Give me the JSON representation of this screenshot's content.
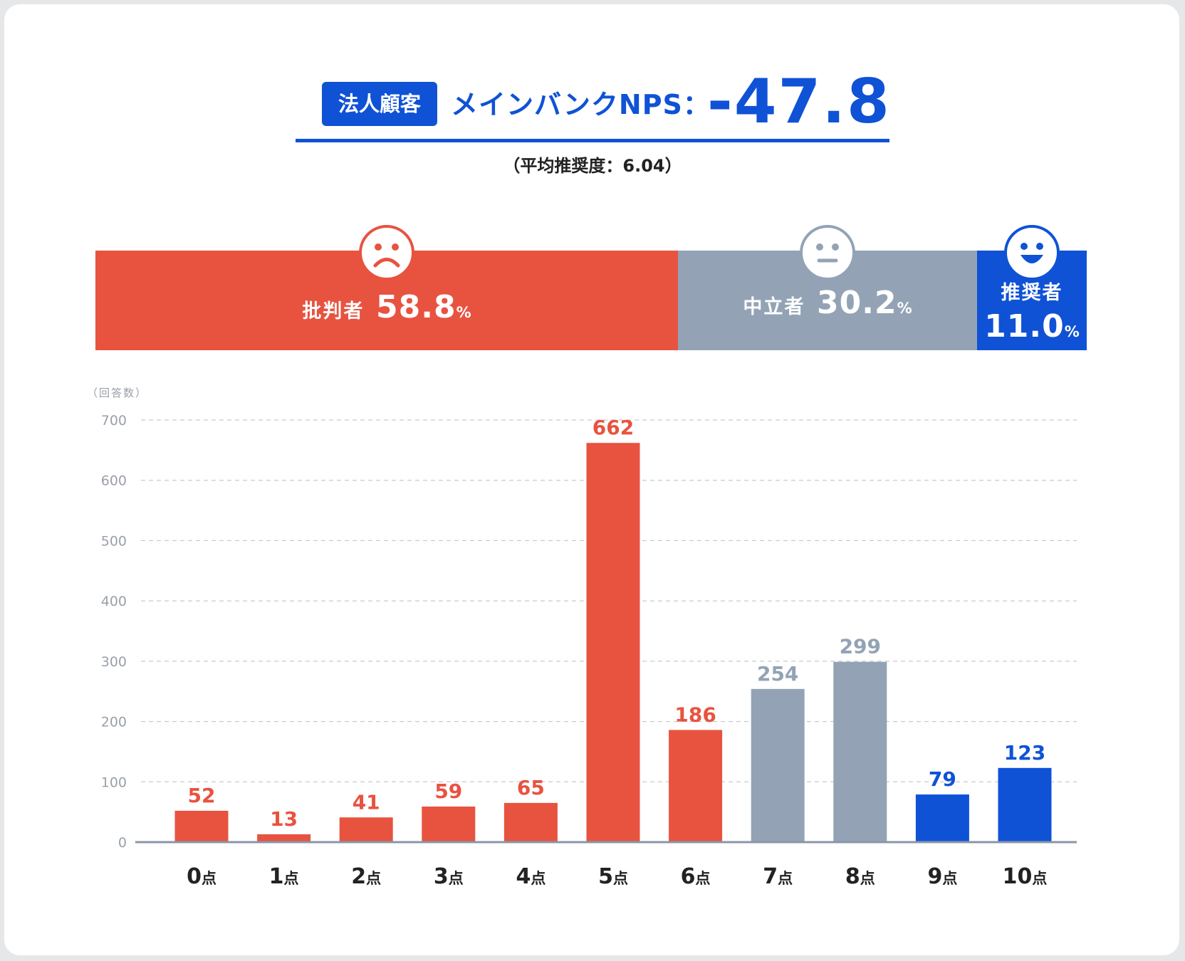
{
  "header": {
    "badge": "法人顧客",
    "title": "メインバンクNPS：",
    "value": "-47.8",
    "subtitle": "（平均推奨度：6.04）"
  },
  "segments": [
    {
      "label": "批判者",
      "value": "58.8",
      "unit": "%",
      "share": 58.8,
      "color": "#e85340",
      "face": "sad-face-icon"
    },
    {
      "label": "中立者",
      "value": "30.2",
      "unit": "%",
      "share": 30.2,
      "color": "#93a3b5",
      "face": "neutral-face-icon"
    },
    {
      "label": "推奨者",
      "value": "11.0",
      "unit": "%",
      "share": 11.0,
      "color": "#0f52d6",
      "face": "happy-face-icon"
    }
  ],
  "chart_data": {
    "type": "bar",
    "ylabel": "（回答数）",
    "ylim": [
      0,
      700
    ],
    "yticks": [
      0,
      100,
      200,
      300,
      400,
      500,
      600,
      700
    ],
    "grid": true,
    "categories": [
      "0点",
      "1点",
      "2点",
      "3点",
      "4点",
      "5点",
      "6点",
      "7点",
      "8点",
      "9点",
      "10点"
    ],
    "category_numbers": [
      "0",
      "1",
      "2",
      "3",
      "4",
      "5",
      "6",
      "7",
      "8",
      "9",
      "10"
    ],
    "category_unit": "点",
    "values": [
      52,
      13,
      41,
      59,
      65,
      662,
      186,
      254,
      299,
      79,
      123
    ],
    "colors": [
      "#e85340",
      "#e85340",
      "#e85340",
      "#e85340",
      "#e85340",
      "#e85340",
      "#e85340",
      "#93a3b5",
      "#93a3b5",
      "#0f52d6",
      "#0f52d6"
    ]
  }
}
